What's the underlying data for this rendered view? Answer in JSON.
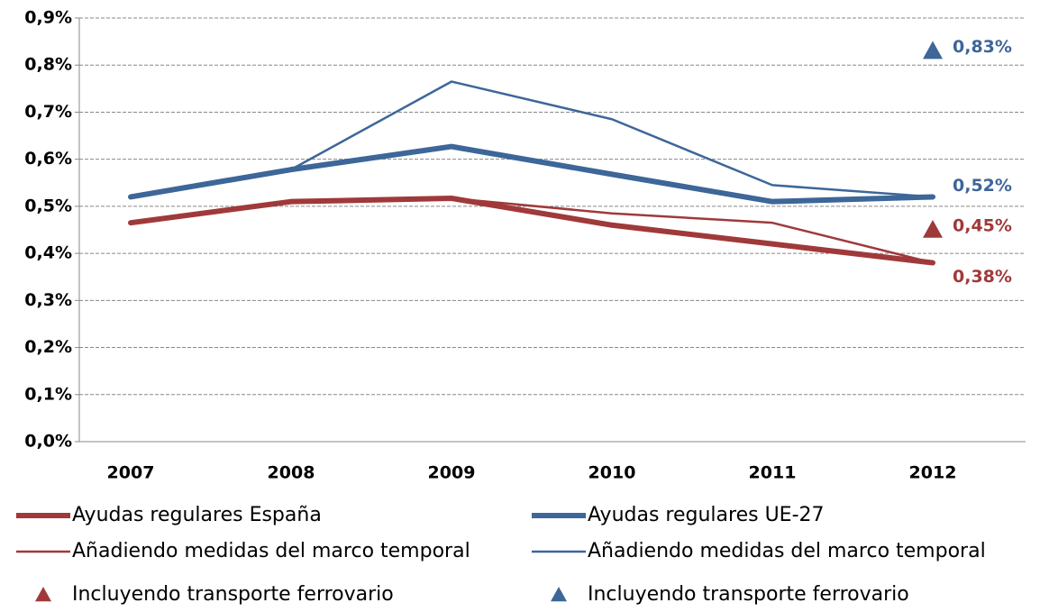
{
  "chart_data": {
    "type": "line",
    "categories": [
      "2007",
      "2008",
      "2009",
      "2010",
      "2011",
      "2012"
    ],
    "series": [
      {
        "name": "Ayudas regulares España",
        "color": "#a0393a",
        "linewidth": 6,
        "values": [
          0.465,
          0.51,
          0.517,
          0.46,
          0.42,
          0.38
        ],
        "value_labels": [
          null,
          null,
          null,
          null,
          null,
          "0,38%"
        ]
      },
      {
        "name": "Ayudas regulares UE-27",
        "color": "#3d6699",
        "linewidth": 6,
        "values": [
          0.52,
          0.578,
          0.627,
          0.568,
          0.51,
          0.52
        ],
        "value_labels": [
          null,
          null,
          null,
          null,
          null,
          "0,52%"
        ]
      },
      {
        "name": "Añadiendo medidas del marco temporal",
        "color": "#a0393a",
        "linewidth": 2.5,
        "values": [
          0.465,
          0.51,
          0.517,
          0.485,
          0.465,
          0.38
        ]
      },
      {
        "name": "Añadiendo medidas del marco temporal",
        "color": "#3d6699",
        "linewidth": 2.5,
        "values": [
          0.52,
          0.578,
          0.765,
          0.685,
          0.545,
          0.52
        ]
      },
      {
        "name": "Incluyendo transporte ferrovario",
        "color": "#a0393a",
        "marker": "triangle",
        "values": [
          null,
          null,
          null,
          null,
          null,
          0.45
        ],
        "value_labels": [
          null,
          null,
          null,
          null,
          null,
          "0,45%"
        ]
      },
      {
        "name": "Incluyendo transporte ferrovario",
        "color": "#3d6699",
        "marker": "triangle",
        "values": [
          null,
          null,
          null,
          null,
          null,
          0.83
        ],
        "value_labels": [
          null,
          null,
          null,
          null,
          null,
          "0,83%"
        ]
      }
    ],
    "ylim": [
      0,
      0.9
    ],
    "yticks": [
      {
        "value": 0,
        "label": "0,0%"
      },
      {
        "value": 0.1,
        "label": "0,1%"
      },
      {
        "value": 0.2,
        "label": "0,2%"
      },
      {
        "value": 0.3,
        "label": "0,3%"
      },
      {
        "value": 0.4,
        "label": "0,4%"
      },
      {
        "value": 0.5,
        "label": "0,5%"
      },
      {
        "value": 0.6,
        "label": "0,6%"
      },
      {
        "value": 0.7,
        "label": "0,7%"
      },
      {
        "value": 0.8,
        "label": "0,8%"
      },
      {
        "value": 0.9,
        "label": "0,9%"
      }
    ],
    "grid": true
  }
}
